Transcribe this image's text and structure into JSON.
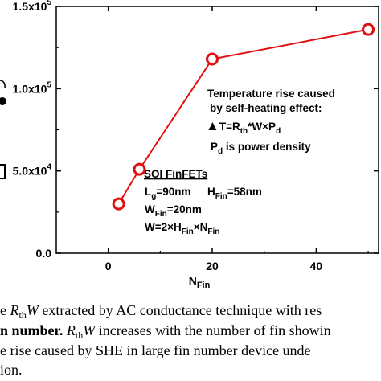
{
  "chart_data": {
    "type": "line",
    "xlabel": "N",
    "xlabel_sub": "Fin",
    "xlim": [
      -10,
      52
    ],
    "ylim": [
      0,
      150000
    ],
    "x_ticks": [
      {
        "value": 0,
        "label": "0"
      },
      {
        "value": 20,
        "label": "20"
      },
      {
        "value": 40,
        "label": "40"
      }
    ],
    "y_ticks": [
      {
        "value": 0,
        "mant": "0.0",
        "exp": ""
      },
      {
        "value": 50000,
        "mant": "5.0x10",
        "exp": "4"
      },
      {
        "value": 100000,
        "mant": "1.0x10",
        "exp": "5"
      },
      {
        "value": 150000,
        "mant": "1.5x10",
        "exp": "5"
      }
    ],
    "series": [
      {
        "x": [
          2,
          6,
          20,
          50
        ],
        "y": [
          30000,
          51000,
          118000,
          136000
        ]
      }
    ],
    "colors": {
      "line": "#e01010",
      "marker_edge": "#e01010",
      "marker_fill": "#ffffff"
    },
    "grid": false
  },
  "annotations": {
    "temp_title_1": "Temperature rise caused",
    "temp_title_2": "by self-heating effect:",
    "eq_delta": "▲",
    "eq_t": "T=R",
    "eq_th": "th",
    "eq_mid": "*W×P",
    "eq_d": "d",
    "power_p": "P",
    "power_d": "d",
    "power_rest": " is power density",
    "soi_title": "SOI FinFETs",
    "lg_l": "L",
    "lg_g": "g",
    "lg_val": "=90nm",
    "hfin_h": "H",
    "hfin_sub": "Fin",
    "hfin_val": "=58nm",
    "wfin_w": "W",
    "wfin_sub": "Fin",
    "wfin_val": "=20nm",
    "w_eq_1": "W=2×H",
    "w_eq_sub1": "Fin",
    "w_eq_2": "×N",
    "w_eq_sub2": "Fin"
  },
  "caption": {
    "line1_a": "e ",
    "line1_r": "R",
    "line1_th": "th",
    "line1_w": "W",
    "line1_b": " extracted by AC conductance technique with res",
    "line2_a": "n number. ",
    "line2_r": "R",
    "line2_th": "th",
    "line2_w": "W",
    "line2_b": " increases with the number of fin showin",
    "line3": "e rise caused by SHE in large fin number device unde",
    "line4": "ion."
  }
}
